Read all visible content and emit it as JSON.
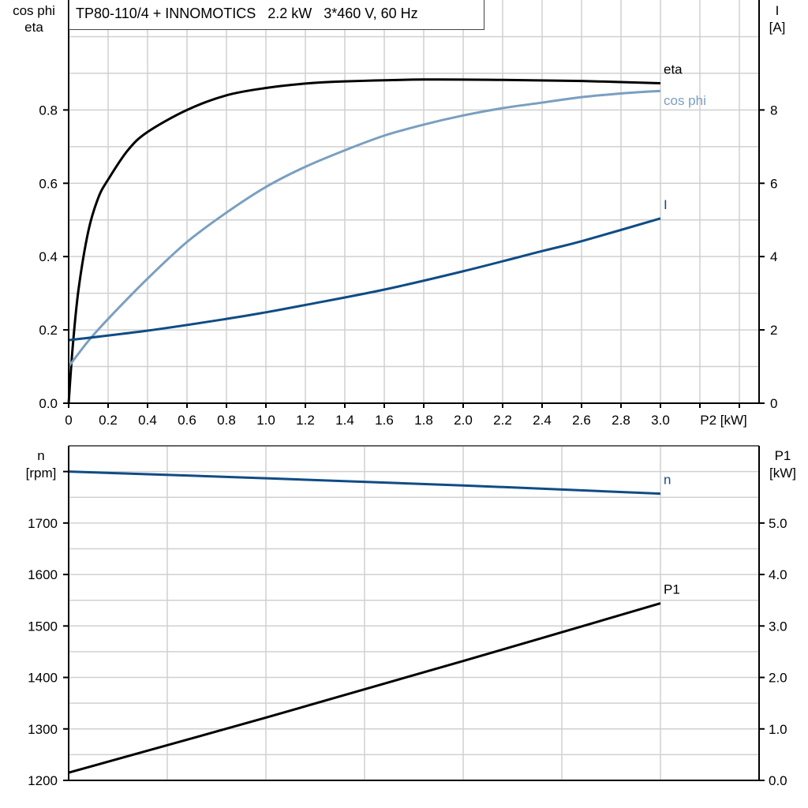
{
  "title": "TP80-110/4 + INNOMOTICS   2.2 kW   3*460 V, 60 Hz",
  "colors": {
    "eta": "#000000",
    "cos_phi": "#7a9fc0",
    "I": "#0f4c85",
    "n": "#0f4c85",
    "P1": "#000000",
    "grid": "#d0d0d0"
  },
  "chart_data": [
    {
      "type": "line",
      "xlabel": "P2 [kW]",
      "ylabel_left": [
        "cos phi",
        "eta"
      ],
      "ylabel_right": [
        "I",
        "[A]"
      ],
      "xlim": [
        0,
        3.5
      ],
      "ylim_left": [
        0,
        1.1
      ],
      "ylim_right": [
        0,
        11
      ],
      "grid": true,
      "x_ticks": [
        "0",
        "0.2",
        "0.4",
        "0.6",
        "0.8",
        "1.0",
        "1.2",
        "1.4",
        "1.6",
        "1.8",
        "2.0",
        "2.2",
        "2.4",
        "2.6",
        "2.8",
        "3.0"
      ],
      "y_ticks_left": [
        "0.0",
        "0.2",
        "0.4",
        "0.6",
        "0.8"
      ],
      "y_ticks_right": [
        "0",
        "2",
        "4",
        "6",
        "8"
      ],
      "series": [
        {
          "name": "eta",
          "axis": "left",
          "x": [
            0,
            0.02,
            0.05,
            0.1,
            0.15,
            0.2,
            0.3,
            0.4,
            0.6,
            0.8,
            1.0,
            1.2,
            1.4,
            1.8,
            2.2,
            2.6,
            3.0
          ],
          "y": [
            0,
            0.15,
            0.31,
            0.47,
            0.56,
            0.61,
            0.69,
            0.74,
            0.8,
            0.84,
            0.86,
            0.872,
            0.878,
            0.883,
            0.882,
            0.879,
            0.873
          ]
        },
        {
          "name": "cos phi",
          "axis": "left",
          "x": [
            0,
            0.1,
            0.2,
            0.4,
            0.6,
            0.8,
            1.0,
            1.2,
            1.4,
            1.6,
            1.8,
            2.0,
            2.2,
            2.4,
            2.6,
            2.8,
            3.0
          ],
          "y": [
            0.1,
            0.17,
            0.23,
            0.34,
            0.44,
            0.52,
            0.59,
            0.645,
            0.69,
            0.73,
            0.76,
            0.785,
            0.805,
            0.82,
            0.835,
            0.845,
            0.852
          ]
        },
        {
          "name": "I",
          "axis": "right",
          "x": [
            0,
            0.4,
            0.8,
            1.0,
            1.2,
            1.6,
            2.0,
            2.4,
            2.6,
            3.0
          ],
          "y": [
            1.72,
            1.98,
            2.3,
            2.48,
            2.68,
            3.1,
            3.6,
            4.15,
            4.42,
            5.04
          ]
        }
      ]
    },
    {
      "type": "line",
      "ylabel_left": [
        "n",
        "[rpm]"
      ],
      "ylabel_right": [
        "P1",
        "[kW]"
      ],
      "xlim": [
        0,
        3.5
      ],
      "ylim_left": [
        1200,
        1850
      ],
      "ylim_right": [
        0,
        6.5
      ],
      "grid": true,
      "y_ticks_left": [
        "1200",
        "1300",
        "1400",
        "1500",
        "1600",
        "1700"
      ],
      "y_ticks_right": [
        "0.0",
        "1.0",
        "2.0",
        "3.0",
        "4.0",
        "5.0"
      ],
      "series": [
        {
          "name": "n",
          "axis": "left",
          "x": [
            0,
            1.0,
            2.0,
            3.0
          ],
          "y": [
            1800,
            1787,
            1773,
            1757
          ]
        },
        {
          "name": "P1",
          "axis": "right",
          "x": [
            0,
            1.0,
            2.0,
            3.0
          ],
          "y": [
            0.15,
            1.22,
            2.32,
            3.44
          ]
        }
      ]
    }
  ]
}
